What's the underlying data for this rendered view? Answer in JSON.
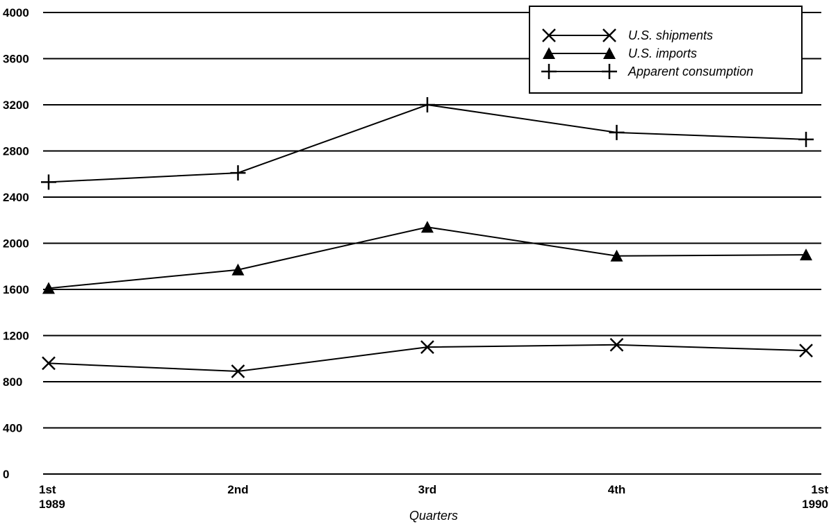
{
  "chart_data": {
    "type": "line",
    "title": "",
    "xlabel": "Quarters",
    "ylabel": "",
    "ylim": [
      0,
      4000
    ],
    "yticks": [
      0,
      400,
      800,
      1200,
      1600,
      2000,
      2400,
      2800,
      3200,
      3600,
      4000
    ],
    "ytick_labels": [
      "0",
      "400",
      "800",
      "1200",
      "1600",
      "2000",
      "2400",
      "2800",
      "3200",
      "3600",
      "4000"
    ],
    "categories": [
      "1st 1989",
      "2nd",
      "3rd",
      "4th",
      "1st 1990"
    ],
    "category_lines": [
      [
        "1st",
        "1989"
      ],
      [
        "2nd"
      ],
      [
        "3rd"
      ],
      [
        "4th"
      ],
      [
        "1st",
        "1990"
      ]
    ],
    "grid": true,
    "legend_position": "top-right",
    "series": [
      {
        "name": "U.S. shipments",
        "marker": "x",
        "values": [
          960,
          890,
          1100,
          1120,
          1070
        ]
      },
      {
        "name": "U.S. imports",
        "marker": "triangle",
        "values": [
          1610,
          1770,
          2140,
          1890,
          1900
        ]
      },
      {
        "name": "Apparent consumption",
        "marker": "plus",
        "values": [
          2530,
          2610,
          3200,
          2960,
          2900
        ]
      }
    ]
  }
}
